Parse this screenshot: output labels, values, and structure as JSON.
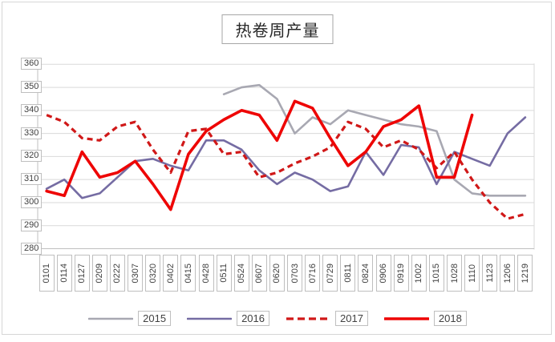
{
  "title": "热卷周产量",
  "chart_data": {
    "type": "line",
    "title": "热卷周产量",
    "categories": [
      "0101",
      "0114",
      "0127",
      "0209",
      "0222",
      "0307",
      "0320",
      "0402",
      "0415",
      "0428",
      "0511",
      "0524",
      "0607",
      "0620",
      "0703",
      "0716",
      "0729",
      "0811",
      "0824",
      "0906",
      "0919",
      "1002",
      "1015",
      "1028",
      "1110",
      "1123",
      "1206",
      "1219"
    ],
    "series": [
      {
        "name": "2015",
        "color": "#a8a8b2",
        "line_style": "solid",
        "line_width": 2.6,
        "values": [
          null,
          null,
          null,
          null,
          null,
          null,
          null,
          null,
          null,
          null,
          347,
          350,
          351,
          345,
          330,
          337,
          334,
          340,
          338,
          336,
          334,
          333,
          331,
          310,
          304,
          303,
          303,
          303
        ]
      },
      {
        "name": "2016",
        "color": "#756ca3",
        "line_style": "solid",
        "line_width": 2.6,
        "values": [
          306,
          310,
          302,
          304,
          311,
          318,
          319,
          316,
          314,
          327,
          327,
          323,
          314,
          308,
          313,
          310,
          305,
          307,
          322,
          312,
          325,
          324,
          308,
          322,
          319,
          316,
          330,
          337
        ]
      },
      {
        "name": "2017",
        "color": "#d01818",
        "line_style": "dashed",
        "line_width": 3.2,
        "values": [
          338,
          335,
          328,
          327,
          333,
          335,
          323,
          313,
          331,
          332,
          321,
          322,
          311,
          313,
          317,
          320,
          324,
          335,
          332,
          324,
          327,
          323,
          315,
          322,
          310,
          300,
          293,
          295
        ]
      },
      {
        "name": "2018",
        "color": "#ee0505",
        "line_style": "solid",
        "line_width": 3.6,
        "values": [
          305,
          303,
          322,
          311,
          313,
          318,
          308,
          297,
          321,
          331,
          336,
          340,
          338,
          327,
          344,
          341,
          328,
          316,
          322,
          333,
          336,
          342,
          311,
          311,
          338,
          null,
          null,
          null
        ]
      }
    ],
    "ylim": [
      280,
      360
    ],
    "y_ticks": [
      360,
      350,
      340,
      330,
      320,
      310,
      300,
      290,
      280
    ],
    "grid": true,
    "legend_position": "bottom",
    "gridline_color": "#d9d9d9",
    "axis_color": "#bfbfbf"
  },
  "legend": {
    "items": [
      "2015",
      "2016",
      "2017",
      "2018"
    ]
  }
}
